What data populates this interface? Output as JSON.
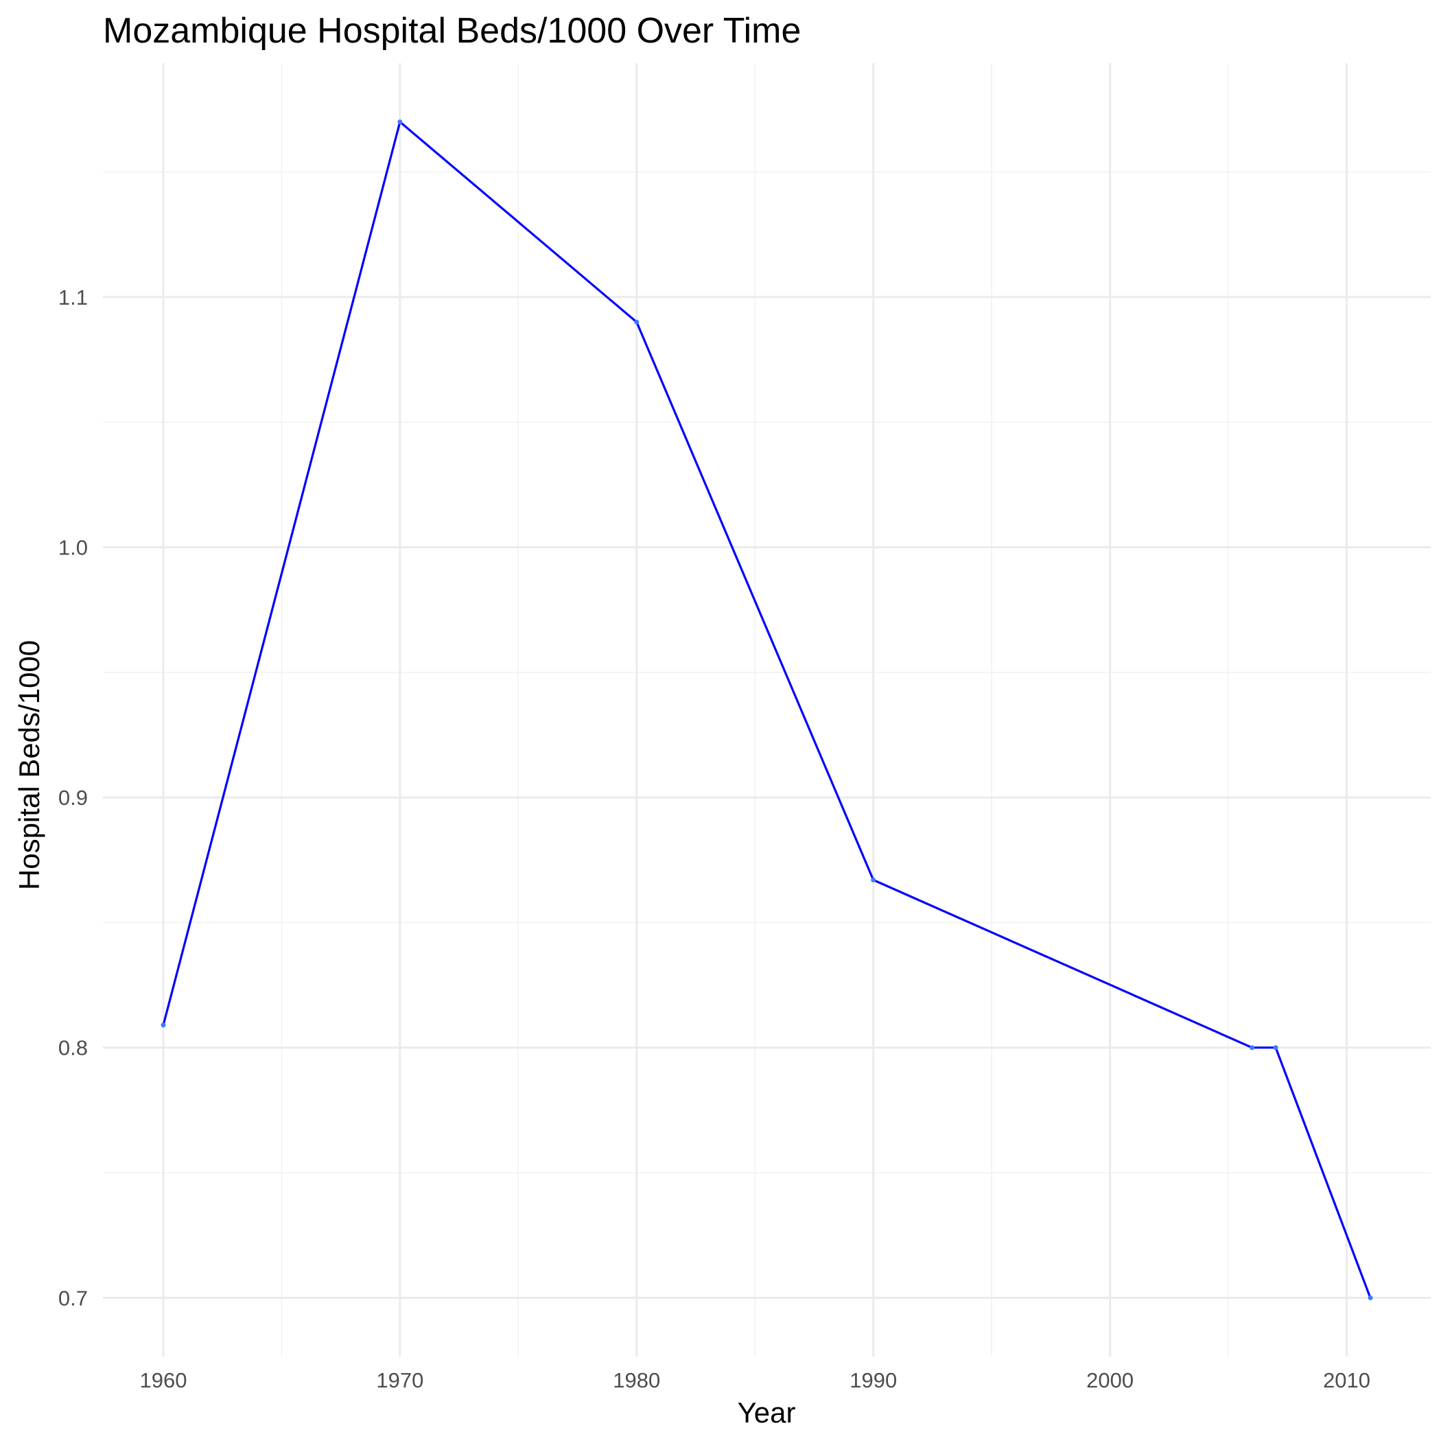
{
  "chart_data": {
    "type": "line",
    "title": "Mozambique Hospital Beds/1000 Over Time",
    "xlabel": "Year",
    "ylabel": "Hospital Beds/1000",
    "x": [
      1960,
      1970,
      1980,
      1990,
      2006,
      2007,
      2011
    ],
    "series": [
      {
        "values": [
          0.809,
          1.17,
          1.09,
          0.867,
          0.8,
          0.8,
          0.7
        ],
        "color": "#0000ff"
      }
    ],
    "xlim": [
      1957.45,
      2013.55
    ],
    "ylim": [
      0.6765,
      1.1935
    ],
    "x_ticks": [
      1960,
      1970,
      1980,
      1990,
      2000,
      2010
    ],
    "x_tick_labels": [
      "1960",
      "1970",
      "1980",
      "1990",
      "2000",
      "2010"
    ],
    "x_minor_ticks": [
      1965,
      1975,
      1985,
      1995,
      2005
    ],
    "y_ticks": [
      0.7,
      0.8,
      0.9,
      1.0,
      1.1
    ],
    "y_tick_labels": [
      "0.7",
      "0.8",
      "0.9",
      "1.0",
      "1.1"
    ],
    "y_minor_ticks": [
      0.75,
      0.85,
      0.95,
      1.05,
      1.15
    ],
    "grid": true,
    "legend": "none"
  }
}
